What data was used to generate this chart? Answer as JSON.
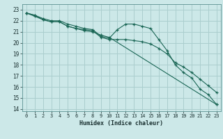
{
  "title": "",
  "xlabel": "Humidex (Indice chaleur)",
  "ylabel": "",
  "bg_color": "#cce8e8",
  "grid_color": "#aacece",
  "line_color": "#1a6655",
  "xlim": [
    -0.5,
    23.5
  ],
  "ylim": [
    13.8,
    23.5
  ],
  "yticks": [
    14,
    15,
    16,
    17,
    18,
    19,
    20,
    21,
    22,
    23
  ],
  "xticks": [
    0,
    1,
    2,
    3,
    4,
    5,
    6,
    7,
    8,
    9,
    10,
    11,
    12,
    13,
    14,
    15,
    16,
    17,
    18,
    19,
    20,
    21,
    22,
    23
  ],
  "series": [
    {
      "x": [
        0,
        1,
        2,
        3,
        4,
        5,
        6,
        7,
        8,
        9,
        10,
        11,
        12,
        13,
        14,
        15,
        16,
        17,
        18,
        19,
        20,
        21,
        22,
        23
      ],
      "y": [
        22.7,
        22.5,
        22.2,
        22.0,
        22.0,
        21.7,
        21.5,
        21.3,
        21.2,
        20.6,
        20.4,
        21.2,
        21.7,
        21.7,
        21.5,
        21.3,
        20.3,
        19.3,
        18.0,
        17.3,
        16.8,
        15.8,
        15.3,
        14.4
      ]
    },
    {
      "x": [
        0,
        1,
        2,
        3,
        4,
        5,
        6,
        7,
        8,
        9,
        10,
        11,
        12,
        13,
        14,
        15,
        16,
        17,
        18,
        19,
        20,
        21,
        22,
        23
      ],
      "y": [
        22.7,
        22.5,
        22.1,
        21.9,
        21.9,
        21.5,
        21.3,
        21.2,
        21.1,
        20.5,
        20.3,
        20.3,
        20.3,
        20.2,
        20.1,
        19.9,
        19.5,
        19.0,
        18.2,
        17.8,
        17.3,
        16.7,
        16.1,
        15.5
      ]
    },
    {
      "x": [
        0,
        1,
        2,
        3,
        4,
        5,
        6,
        7,
        8,
        9,
        10,
        23
      ],
      "y": [
        22.7,
        22.4,
        22.1,
        21.9,
        21.9,
        21.5,
        21.3,
        21.1,
        21.0,
        20.7,
        20.5,
        14.4
      ]
    }
  ]
}
